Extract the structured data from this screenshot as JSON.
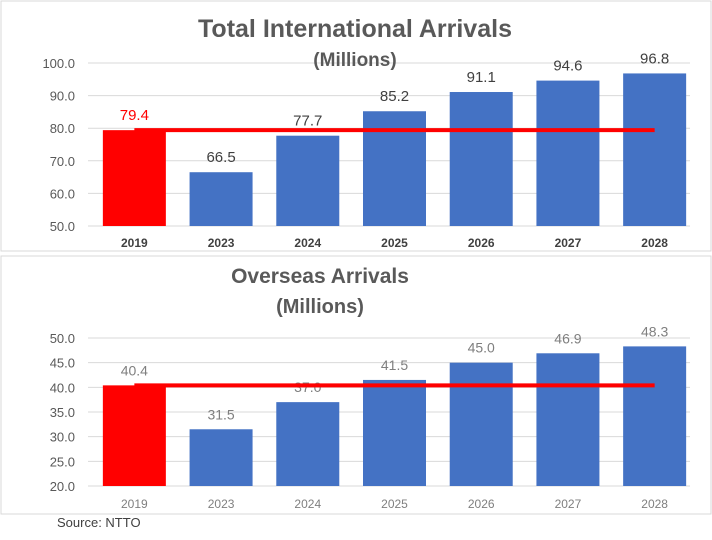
{
  "colors": {
    "bar": "#4472C4",
    "highlight": "#FF0000",
    "baseline": "#FF0000",
    "grid": "#D9D9D9",
    "text": "#595959"
  },
  "chart_data": [
    {
      "type": "bar",
      "title": "Total International Arrivals",
      "subtitle": "(Millions)",
      "categories": [
        "2019",
        "2023",
        "2024",
        "2025",
        "2026",
        "2027",
        "2028"
      ],
      "values": [
        79.4,
        66.5,
        77.7,
        85.2,
        91.1,
        94.6,
        96.8
      ],
      "data_labels": [
        "79.4",
        "66.5",
        "77.7",
        "85.2",
        "91.1",
        "94.6",
        "96.8"
      ],
      "highlight_category": "2019",
      "reference_line": 79.4,
      "ylim": [
        50,
        100
      ],
      "yticks": [
        "50.0",
        "60.0",
        "70.0",
        "80.0",
        "90.0",
        "100.0"
      ],
      "grid": true,
      "legend": "none"
    },
    {
      "type": "bar",
      "title": "Overseas Arrivals",
      "subtitle": "(Millions)",
      "categories": [
        "2019",
        "2023",
        "2024",
        "2025",
        "2026",
        "2027",
        "2028"
      ],
      "values": [
        40.4,
        31.5,
        37.0,
        41.5,
        45.0,
        46.9,
        48.3
      ],
      "data_labels": [
        "40.4",
        "31.5",
        "37.0",
        "41.5",
        "45.0",
        "46.9",
        "48.3"
      ],
      "highlight_category": "2019",
      "reference_line": 40.4,
      "ylim": [
        20,
        50
      ],
      "yticks": [
        "20.0",
        "25.0",
        "30.0",
        "35.0",
        "40.0",
        "45.0",
        "50.0"
      ],
      "grid": true,
      "legend": "none"
    }
  ],
  "source": "Source: NTTO"
}
